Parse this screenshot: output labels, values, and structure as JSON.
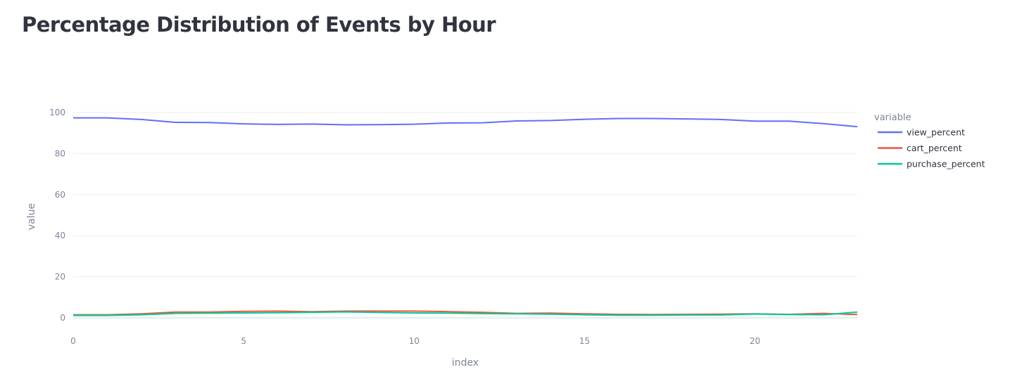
{
  "page": {
    "title": "Percentage Distribution of Events by Hour"
  },
  "chart_data": {
    "type": "line",
    "title": "Percentage Distribution of Events by Hour",
    "xlabel": "index",
    "ylabel": "value",
    "xlim": [
      0,
      23
    ],
    "ylim": [
      0,
      100
    ],
    "x_ticks": [
      0,
      5,
      10,
      15,
      20
    ],
    "y_ticks": [
      0,
      20,
      40,
      60,
      80,
      100
    ],
    "grid": true,
    "legend": {
      "title": "variable",
      "placement": "right"
    },
    "x": [
      0,
      1,
      2,
      3,
      4,
      5,
      6,
      7,
      8,
      9,
      10,
      11,
      12,
      13,
      14,
      15,
      16,
      17,
      18,
      19,
      20,
      21,
      22,
      23
    ],
    "series": [
      {
        "name": "view_percent",
        "color": "#636efa",
        "values": [
          97.4,
          97.4,
          96.6,
          95.2,
          95.1,
          94.5,
          94.2,
          94.4,
          94.0,
          94.1,
          94.3,
          94.9,
          95.0,
          95.9,
          96.1,
          96.7,
          97.1,
          97.1,
          96.9,
          96.6,
          95.8,
          95.8,
          94.6,
          93.1
        ]
      },
      {
        "name": "cart_percent",
        "color": "#ef553b",
        "values": [
          1.5,
          1.5,
          2.0,
          2.8,
          2.8,
          3.2,
          3.3,
          3.0,
          3.3,
          3.3,
          3.3,
          3.0,
          2.7,
          2.2,
          2.3,
          2.0,
          1.7,
          1.6,
          1.7,
          1.8,
          2.0,
          1.7,
          2.2,
          1.6
        ]
      },
      {
        "name": "purchase_percent",
        "color": "#00cc96",
        "values": [
          1.2,
          1.2,
          1.5,
          2.2,
          2.3,
          2.4,
          2.5,
          2.7,
          2.9,
          2.6,
          2.4,
          2.3,
          2.1,
          2.0,
          1.8,
          1.5,
          1.3,
          1.3,
          1.4,
          1.4,
          1.9,
          1.6,
          1.5,
          2.8
        ]
      }
    ]
  }
}
